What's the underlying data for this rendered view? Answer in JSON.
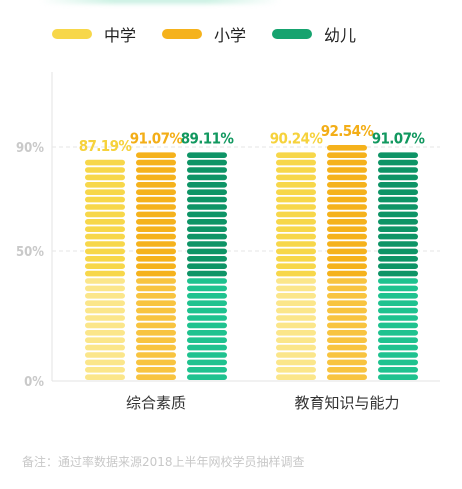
{
  "legend": [
    {
      "label": "中学",
      "color": "#f7d74a"
    },
    {
      "label": "小学",
      "color": "#f5b21c"
    },
    {
      "label": "幼儿",
      "color": "#16a36f"
    }
  ],
  "footnote": "备注：通过率数据来源2018上半年网校学员抽样调查",
  "chart_data": {
    "type": "bar",
    "categories": [
      "综合素质",
      "教育知识与能力"
    ],
    "series": [
      {
        "name": "中学",
        "values": [
          87.19,
          90.24
        ],
        "labels": [
          "87.19%",
          "90.24%"
        ]
      },
      {
        "name": "小学",
        "values": [
          91.07,
          92.54
        ],
        "labels": [
          "91.07%",
          "92.54%"
        ]
      },
      {
        "name": "幼儿",
        "values": [
          89.11,
          91.07
        ],
        "labels": [
          "89.11%",
          "91.07%"
        ]
      }
    ],
    "yticks": [
      {
        "value": 0,
        "label": "0%"
      },
      {
        "value": 50,
        "label": "50%"
      },
      {
        "value": 90,
        "label": "90%"
      }
    ],
    "ylim": [
      0,
      100
    ],
    "grid": true,
    "legend_position": "top-left",
    "colors": {
      "中学": {
        "bar": "#f7d74a",
        "bar_light": "#fbe68a",
        "label": "#f6d23c"
      },
      "小学": {
        "bar": "#f5b21c",
        "bar_light": "#f8c440",
        "label": "#f3ae17"
      },
      "幼儿": {
        "bar": "#0e9466",
        "bar_light": "#1fc28f",
        "label": "#11985f"
      }
    }
  }
}
